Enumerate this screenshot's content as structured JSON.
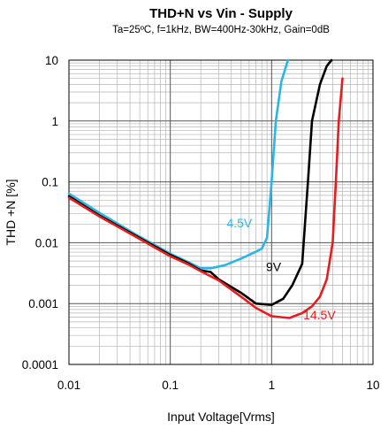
{
  "chart_data": {
    "type": "line",
    "title": "THD+N vs Vin - Supply",
    "subtitle": "Ta=25ºC, f=1kHz, BW=400Hz-30kHz, Gain=0dB",
    "xlabel": "Input Voltage[Vrms]",
    "ylabel": "THD +N [%]",
    "x_scale": "log",
    "y_scale": "log",
    "xlim": [
      0.01,
      10
    ],
    "ylim": [
      0.0001,
      10
    ],
    "x_ticks": [
      {
        "value": 0.01,
        "label": "0.01"
      },
      {
        "value": 0.1,
        "label": "0.1"
      },
      {
        "value": 1,
        "label": "1"
      },
      {
        "value": 10,
        "label": "10"
      }
    ],
    "y_ticks": [
      {
        "value": 0.0001,
        "label": "0.0001"
      },
      {
        "value": 0.001,
        "label": "0.001"
      },
      {
        "value": 0.01,
        "label": "0.01"
      },
      {
        "value": 0.1,
        "label": "0.1"
      },
      {
        "value": 1,
        "label": "1"
      },
      {
        "value": 10,
        "label": "10"
      }
    ],
    "grid": true,
    "series": [
      {
        "name": "4.5V",
        "color": "#29b6e6",
        "label_at": [
          0.36,
          0.018
        ],
        "points": [
          [
            0.01,
            0.064
          ],
          [
            0.02,
            0.031
          ],
          [
            0.05,
            0.0125
          ],
          [
            0.1,
            0.0066
          ],
          [
            0.15,
            0.0048
          ],
          [
            0.2,
            0.0038
          ],
          [
            0.25,
            0.0038
          ],
          [
            0.35,
            0.0043
          ],
          [
            0.5,
            0.0055
          ],
          [
            0.7,
            0.0071
          ],
          [
            0.8,
            0.008
          ],
          [
            0.9,
            0.012
          ],
          [
            1.0,
            0.1
          ],
          [
            1.1,
            1.0
          ],
          [
            1.25,
            4.5
          ],
          [
            1.45,
            10
          ]
        ]
      },
      {
        "name": "9V",
        "color": "#000000",
        "label_at": [
          0.88,
          0.0034
        ],
        "points": [
          [
            0.01,
            0.058
          ],
          [
            0.02,
            0.028
          ],
          [
            0.05,
            0.012
          ],
          [
            0.1,
            0.0063
          ],
          [
            0.15,
            0.0046
          ],
          [
            0.2,
            0.0035
          ],
          [
            0.25,
            0.0033
          ],
          [
            0.3,
            0.0025
          ],
          [
            0.5,
            0.0015
          ],
          [
            0.7,
            0.001
          ],
          [
            1.0,
            0.00095
          ],
          [
            1.3,
            0.0012
          ],
          [
            1.6,
            0.002
          ],
          [
            2.0,
            0.0045
          ],
          [
            2.3,
            0.12
          ],
          [
            2.5,
            1.0
          ],
          [
            3.0,
            4.0
          ],
          [
            3.5,
            8.0
          ],
          [
            3.9,
            10
          ]
        ]
      },
      {
        "name": "14.5V",
        "color": "#e41e1e",
        "label_at": [
          2.05,
          0.00055
        ],
        "points": [
          [
            0.01,
            0.055
          ],
          [
            0.02,
            0.027
          ],
          [
            0.05,
            0.0115
          ],
          [
            0.1,
            0.006
          ],
          [
            0.15,
            0.0044
          ],
          [
            0.2,
            0.0034
          ],
          [
            0.3,
            0.0024
          ],
          [
            0.5,
            0.0013
          ],
          [
            0.7,
            0.00085
          ],
          [
            1.0,
            0.00062
          ],
          [
            1.5,
            0.00058
          ],
          [
            2.0,
            0.0007
          ],
          [
            2.5,
            0.0009
          ],
          [
            3.0,
            0.0013
          ],
          [
            3.5,
            0.0025
          ],
          [
            4.0,
            0.01
          ],
          [
            4.3,
            0.1
          ],
          [
            4.6,
            1.0
          ],
          [
            5.0,
            5.0
          ]
        ]
      }
    ]
  }
}
